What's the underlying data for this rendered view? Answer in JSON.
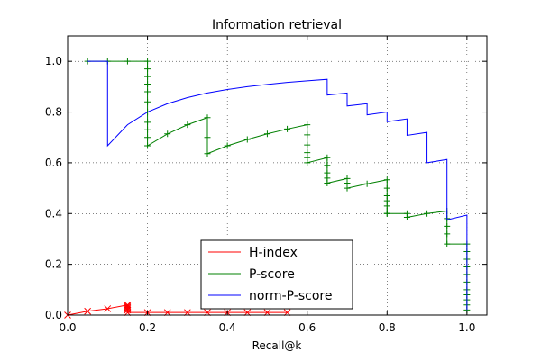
{
  "chart_data": {
    "type": "line",
    "title": "Information retrieval",
    "xlabel": "Recall@k",
    "ylabel": "",
    "xlim": [
      0.0,
      1.05
    ],
    "ylim": [
      0.0,
      1.1
    ],
    "xticks": [
      0.0,
      0.2,
      0.4,
      0.6,
      0.8,
      1.0
    ],
    "yticks": [
      0.0,
      0.2,
      0.4,
      0.6,
      0.8,
      1.0
    ],
    "xtick_labels": [
      "0.0",
      "0.2",
      "0.4",
      "0.6",
      "0.8",
      "1.0"
    ],
    "ytick_labels": [
      "0.0",
      "0.2",
      "0.4",
      "0.6",
      "0.8",
      "1.0"
    ],
    "grid": true,
    "legend_position": "lower-center",
    "series": [
      {
        "name": "H-index",
        "color": "#ff0000",
        "marker": "x",
        "x": [
          0.0,
          0.05,
          0.1,
          0.15,
          0.15,
          0.15,
          0.15,
          0.15,
          0.15,
          0.2,
          0.25,
          0.3,
          0.35,
          0.4,
          0.45,
          0.5,
          0.55
        ],
        "y": [
          0.0,
          0.015,
          0.025,
          0.04,
          0.035,
          0.03,
          0.025,
          0.02,
          0.01,
          0.01,
          0.01,
          0.01,
          0.01,
          0.01,
          0.01,
          0.01,
          0.01
        ]
      },
      {
        "name": "P-score",
        "color": "#008000",
        "marker": "+",
        "x": [
          0.05,
          0.1,
          0.15,
          0.2,
          0.2,
          0.2,
          0.2,
          0.2,
          0.2,
          0.2,
          0.2,
          0.2,
          0.2,
          0.2,
          0.25,
          0.3,
          0.35,
          0.35,
          0.35,
          0.4,
          0.45,
          0.5,
          0.55,
          0.6,
          0.6,
          0.6,
          0.6,
          0.6,
          0.6,
          0.65,
          0.65,
          0.65,
          0.65,
          0.65,
          0.7,
          0.7,
          0.7,
          0.75,
          0.8,
          0.8,
          0.8,
          0.8,
          0.8,
          0.8,
          0.8,
          0.8,
          0.85,
          0.85,
          0.9,
          0.95,
          0.95,
          0.95,
          0.95,
          0.95,
          1.0,
          1.0,
          1.0,
          1.0,
          1.0,
          1.0,
          1.0,
          1.0,
          1.0,
          1.0,
          1.0
        ],
        "y": [
          1.0,
          1.0,
          1.0,
          1.0,
          0.97,
          0.94,
          0.91,
          0.88,
          0.84,
          0.8,
          0.76,
          0.73,
          0.7,
          0.667,
          0.714,
          0.75,
          0.778,
          0.7,
          0.636,
          0.667,
          0.692,
          0.714,
          0.733,
          0.75,
          0.71,
          0.67,
          0.64,
          0.62,
          0.6,
          0.62,
          0.59,
          0.56,
          0.54,
          0.52,
          0.538,
          0.52,
          0.5,
          0.517,
          0.533,
          0.5,
          0.47,
          0.45,
          0.43,
          0.41,
          0.4,
          0.4,
          0.4,
          0.385,
          0.4,
          0.41,
          0.38,
          0.35,
          0.32,
          0.28,
          0.28,
          0.25,
          0.22,
          0.19,
          0.16,
          0.13,
          0.1,
          0.08,
          0.06,
          0.04,
          0.02
        ]
      },
      {
        "name": "norm-P-score",
        "color": "#0000ff",
        "marker": "",
        "x": [
          0.05,
          0.1,
          0.1,
          0.15,
          0.2,
          0.25,
          0.3,
          0.35,
          0.4,
          0.45,
          0.5,
          0.55,
          0.6,
          0.65,
          0.65,
          0.7,
          0.7,
          0.75,
          0.75,
          0.8,
          0.8,
          0.85,
          0.85,
          0.9,
          0.9,
          0.95,
          0.95,
          1.0,
          1.0
        ],
        "y": [
          1.0,
          1.0,
          0.667,
          0.75,
          0.8,
          0.833,
          0.857,
          0.875,
          0.889,
          0.9,
          0.909,
          0.917,
          0.923,
          0.929,
          0.867,
          0.875,
          0.824,
          0.833,
          0.789,
          0.8,
          0.762,
          0.773,
          0.708,
          0.72,
          0.6,
          0.613,
          0.375,
          0.394,
          0.02
        ]
      }
    ]
  }
}
